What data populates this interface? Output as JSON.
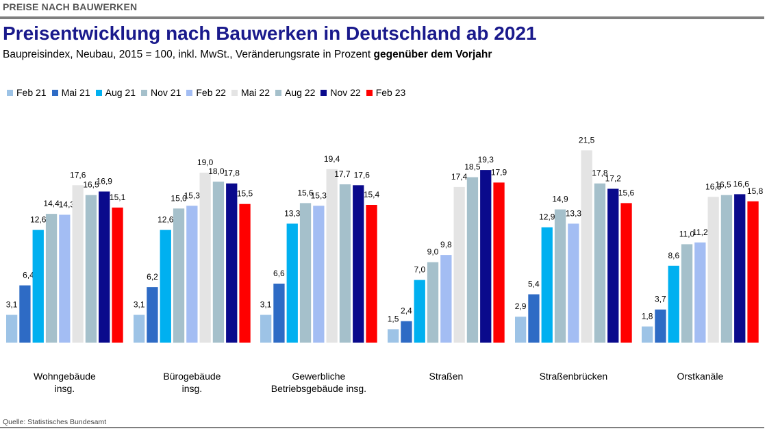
{
  "header": {
    "section_label": "PREISE NACH BAUWERKEN",
    "title": "Preisentwicklung nach Bauwerken in Deutschland ab 2021",
    "subtitle_prefix": "Baupreisindex, Neubau, 2015 = 100, inkl. MwSt., Veränderungsrate in Prozent ",
    "subtitle_bold": "gegenüber dem Vorjahr"
  },
  "footer": {
    "source": "Quelle: Statistisches Bundesamt"
  },
  "chart_data": {
    "type": "bar",
    "title": "Preisentwicklung nach Bauwerken in Deutschland ab 2021",
    "subtitle": "Baupreisindex, Neubau, 2015 = 100, inkl. MwSt., Veränderungsrate in Prozent gegenüber dem Vorjahr",
    "categories": [
      [
        "Wohngebäude",
        "insg."
      ],
      [
        "Bürogebäude",
        "insg."
      ],
      [
        "Gewerbliche",
        "Betriebsgebäude insg."
      ],
      [
        "Straßen"
      ],
      [
        "Straßenbrücken"
      ],
      [
        "Orstkanäle"
      ]
    ],
    "ylim": [
      0,
      22
    ],
    "grid": false,
    "legend_position": "top-left",
    "series": [
      {
        "name": "Feb 21",
        "color": "#9dc3e6",
        "values": [
          3.1,
          3.1,
          3.1,
          1.5,
          2.9,
          1.8
        ],
        "labels": [
          "3,1",
          "3,1",
          "3,1",
          "1,5",
          "2,9",
          "1,8"
        ]
      },
      {
        "name": "Mai 21",
        "color": "#2e6bc5",
        "values": [
          6.4,
          6.2,
          6.6,
          2.4,
          5.4,
          3.7
        ],
        "labels": [
          "6,4",
          "6,2",
          "6,6",
          "2,4",
          "5,4",
          "3,7"
        ]
      },
      {
        "name": "Aug 21",
        "color": "#00b0f0",
        "values": [
          12.6,
          12.6,
          13.3,
          7.0,
          12.9,
          8.6
        ],
        "labels": [
          "12,6",
          "12,6",
          "13,3",
          "7,0",
          "12,9",
          "8,6"
        ]
      },
      {
        "name": "Nov 21",
        "color": "#a5c0cb",
        "values": [
          14.4,
          15.0,
          15.6,
          9.0,
          14.9,
          11.0
        ],
        "labels": [
          "14,4",
          "15,0",
          "15,6",
          "9,0",
          "14,9",
          "11,0"
        ]
      },
      {
        "name": "Feb 22",
        "color": "#a3bdf3",
        "values": [
          14.3,
          15.3,
          15.3,
          9.8,
          13.3,
          11.2
        ],
        "labels": [
          "14,3",
          "15,3",
          "15,3",
          "9,8",
          "13,3",
          "11,2"
        ]
      },
      {
        "name": "Mai 22",
        "color": "#e4e4e4",
        "values": [
          17.6,
          19.0,
          19.4,
          17.4,
          21.5,
          16.3
        ],
        "labels": [
          "17,6",
          "19,0",
          "19,4",
          "17,4",
          "21,5",
          "16,3"
        ]
      },
      {
        "name": "Aug 22",
        "color": "#a5c0cb",
        "values": [
          16.5,
          18.0,
          17.7,
          18.5,
          17.8,
          16.5
        ],
        "labels": [
          "16,5",
          "18,0",
          "17,7",
          "18,5",
          "17,8",
          "16,5"
        ]
      },
      {
        "name": "Nov 22",
        "color": "#0a0a8c",
        "values": [
          16.9,
          17.8,
          17.6,
          19.3,
          17.2,
          16.6
        ],
        "labels": [
          "16,9",
          "17,8",
          "17,6",
          "19,3",
          "17,2",
          "16,6"
        ]
      },
      {
        "name": "Feb 23",
        "color": "#ff0000",
        "values": [
          15.1,
          15.5,
          15.4,
          17.9,
          15.6,
          15.8
        ],
        "labels": [
          "15,1",
          "15,5",
          "15,4",
          "17,9",
          "15,6",
          "15,8"
        ]
      }
    ]
  }
}
